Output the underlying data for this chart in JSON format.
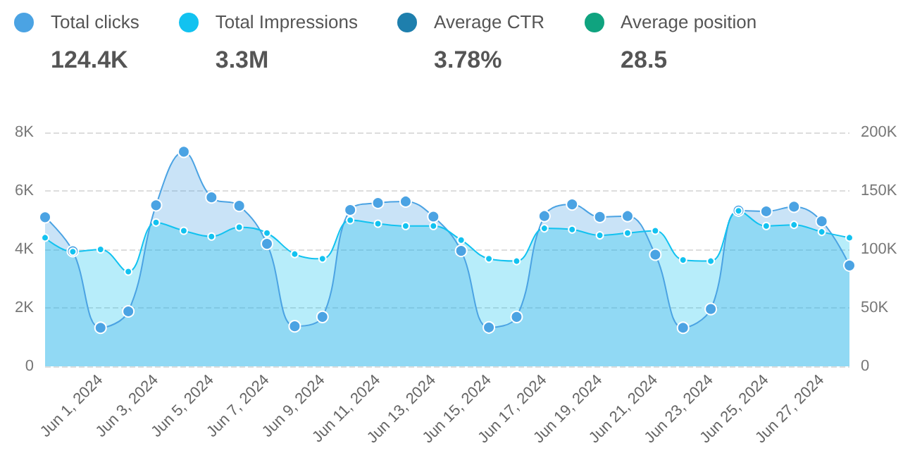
{
  "chart_data": {
    "type": "area",
    "categories": [
      null,
      null,
      "Jun 1, 2024",
      null,
      "Jun 3, 2024",
      null,
      "Jun 5, 2024",
      null,
      "Jun 7, 2024",
      null,
      "Jun 9, 2024",
      null,
      "Jun 11, 2024",
      null,
      "Jun 13, 2024",
      null,
      "Jun 15, 2024",
      null,
      "Jun 17, 2024",
      null,
      "Jun 19, 2024",
      null,
      "Jun 21, 2024",
      null,
      "Jun 23, 2024",
      null,
      "Jun 25, 2024",
      null,
      "Jun 27, 2024",
      null
    ],
    "series": [
      {
        "name": "Total clicks",
        "color": "#4ba3e3",
        "values": [
          5100,
          3940,
          1320,
          1880,
          5510,
          7340,
          5780,
          5490,
          4190,
          1370,
          1690,
          5350,
          5590,
          5640,
          5120,
          3950,
          1330,
          1690,
          5140,
          5540,
          5110,
          5140,
          3820,
          1320,
          1960,
          5330,
          5300,
          5460,
          4960,
          3450
        ]
      },
      {
        "name": "Total Impressions",
        "color": "#12c2f0",
        "axis": "y2",
        "values": [
          110000,
          98000,
          100000,
          81000,
          123000,
          116000,
          111000,
          119000,
          114000,
          96000,
          92000,
          125000,
          122000,
          120000,
          120000,
          108000,
          92000,
          90000,
          118000,
          117000,
          112000,
          114000,
          116000,
          91000,
          90000,
          133000,
          120000,
          121000,
          115000,
          110000
        ]
      },
      {
        "name": "Average CTR",
        "color": "#1e7fad",
        "values": [
          null,
          null,
          null,
          null,
          null,
          null,
          null,
          null,
          null,
          null,
          null,
          null,
          null,
          null,
          null,
          null,
          null,
          null,
          null,
          null,
          null,
          null,
          null,
          null,
          null,
          null,
          null,
          null,
          null,
          null
        ]
      },
      {
        "name": "Average position",
        "color": "#0fa37f",
        "values": [
          null,
          null,
          null,
          null,
          null,
          null,
          null,
          null,
          null,
          null,
          null,
          null,
          null,
          null,
          null,
          null,
          null,
          null,
          null,
          null,
          null,
          null,
          null,
          null,
          null,
          null,
          null,
          null,
          null,
          null
        ]
      }
    ],
    "annotations": [
      "124.4K",
      "3.3M",
      "3.78%",
      "28.5"
    ],
    "ylim": [
      0,
      8000
    ],
    "yticks": [
      {
        "value": 0,
        "label": "0"
      },
      {
        "value": 2000,
        "label": "2K"
      },
      {
        "value": 4000,
        "label": "4K"
      },
      {
        "value": 6000,
        "label": "6K"
      },
      {
        "value": 8000,
        "label": "8K"
      }
    ],
    "y2lim": [
      0,
      200000
    ],
    "y2ticks": [
      {
        "value": 0,
        "label": "0"
      },
      {
        "value": 50000,
        "label": "50K"
      },
      {
        "value": 100000,
        "label": "100K"
      },
      {
        "value": 150000,
        "label": "150K"
      },
      {
        "value": 200000,
        "label": "200K"
      }
    ],
    "grid": "y",
    "legend": "top left",
    "marker": "circle",
    "line_style": "solid"
  }
}
